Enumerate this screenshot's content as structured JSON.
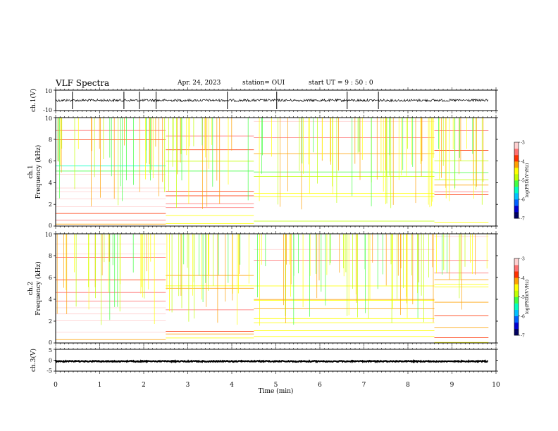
{
  "header": {
    "title": "VLF Spectra",
    "date": "Apr. 24, 2023",
    "station": "station= OUI",
    "start_ut": "start  UT  =   9  : 50 : 0"
  },
  "chart_data": [
    {
      "type": "line",
      "id": "ch1-waveform",
      "ylabel": "ch.1(V)",
      "ylim": [
        -10,
        10
      ],
      "yticks": [
        "10",
        "-10"
      ],
      "xlim": [
        0,
        10
      ],
      "x_extent": [
        0,
        9.83
      ],
      "mean": 0,
      "typical_amplitude": 1.2,
      "max_spikes": [
        0.38,
        1.55,
        1.9,
        2.28,
        3.9,
        5.02,
        6.62,
        7.33
      ]
    },
    {
      "type": "heatmap",
      "id": "ch1-spectrogram",
      "ylabel_top": "ch.1",
      "ylabel": "Frequency  (kHz)",
      "ylim": [
        0,
        10
      ],
      "yticks": [
        "0",
        "2",
        "4",
        "6",
        "8",
        "10"
      ],
      "xlim": [
        0,
        10
      ],
      "x_extent": [
        0,
        9.83
      ],
      "colorbar": {
        "label": "log(PSD)(V²/Hz)",
        "range": [
          -7,
          -3
        ],
        "ticks": [
          "-3",
          "-4",
          "-5",
          "-6",
          "-7"
        ]
      },
      "segments": [
        {
          "t_start": 0,
          "t_end": 2.5,
          "band_edges_khz": [
            0,
            0.5,
            1.0,
            1.5,
            2.0,
            2.5,
            3.0,
            3.5,
            4.0,
            4.8,
            5.2,
            5.8,
            6.3,
            7.0,
            8.0,
            9.0,
            10.0
          ],
          "log_psd": [
            -5.5,
            -5.0,
            -5.2,
            -4.2,
            -4.8,
            -4.5,
            -4.3,
            -4.6,
            -4.0,
            -6.6,
            -6.9,
            -6.2,
            -5.6,
            -5.2,
            -4.8,
            -4.6
          ]
        },
        {
          "t_start": 2.5,
          "t_end": 4.5,
          "band_edges_khz": [
            0,
            0.5,
            1.0,
            1.5,
            2.0,
            2.5,
            3.0,
            3.5,
            4.0,
            4.8,
            5.2,
            5.8,
            6.3,
            7.0,
            8.0,
            9.0,
            10.0
          ],
          "log_psd": [
            -6.0,
            -6.0,
            -5.8,
            -5.0,
            -5.0,
            -5.2,
            -5.4,
            -5.6,
            -6.0,
            -6.6,
            -6.9,
            -6.2,
            -5.6,
            -5.2,
            -4.8,
            -4.6
          ]
        },
        {
          "t_start": 4.5,
          "t_end": 8.6,
          "band_edges_khz": [
            0,
            0.5,
            1.0,
            1.5,
            2.0,
            2.5,
            3.0,
            3.5,
            4.0,
            4.8,
            5.2,
            5.8,
            6.3,
            7.0,
            8.0,
            9.0,
            10.0
          ],
          "log_psd": [
            -6.2,
            -6.2,
            -6.0,
            -6.1,
            -6.0,
            -6.0,
            -5.9,
            -6.0,
            -6.3,
            -6.6,
            -7.0,
            -6.2,
            -5.6,
            -5.2,
            -4.8,
            -4.6
          ]
        },
        {
          "t_start": 8.6,
          "t_end": 9.83,
          "band_edges_khz": [
            0,
            0.5,
            1.0,
            1.5,
            2.0,
            2.5,
            3.0,
            3.5,
            4.0,
            4.8,
            5.2,
            5.8,
            6.3,
            7.0,
            8.0,
            9.0,
            10.0
          ],
          "log_psd": [
            -6.0,
            -6.0,
            -5.6,
            -5.8,
            -5.6,
            -5.3,
            -5.0,
            -5.6,
            -6.2,
            -6.5,
            -6.9,
            -6.2,
            -5.6,
            -5.2,
            -4.8,
            -4.6
          ]
        }
      ]
    },
    {
      "type": "heatmap",
      "id": "ch2-spectrogram",
      "ylabel_top": "ch.2",
      "ylabel": "Frequency  (kHz)",
      "ylim": [
        0,
        10
      ],
      "yticks": [
        "0",
        "2",
        "4",
        "6",
        "8",
        "10"
      ],
      "xlim": [
        0,
        10
      ],
      "x_extent": [
        0,
        9.83
      ],
      "colorbar": {
        "label": "log(PSD)(V²/Hz)",
        "range": [
          -7,
          -3
        ],
        "ticks": [
          "-3",
          "-4",
          "-5",
          "-6",
          "-7"
        ]
      },
      "segments": [
        {
          "t_start": 0,
          "t_end": 2.5,
          "band_edges_khz": [
            0,
            0.5,
            1.0,
            1.5,
            2.0,
            2.5,
            3.0,
            3.5,
            4.0,
            4.8,
            5.2,
            5.8,
            6.3,
            7.0,
            8.0,
            9.0,
            10.0
          ],
          "log_psd": [
            -5.6,
            -5.2,
            -4.5,
            -4.8,
            -4.7,
            -4.3,
            -4.6,
            -4.8,
            -5.0,
            -5.3,
            -5.6,
            -5.4,
            -5.0,
            -4.8,
            -4.6,
            -4.3
          ]
        },
        {
          "t_start": 2.5,
          "t_end": 4.5,
          "band_edges_khz": [
            0,
            0.5,
            1.0,
            1.5,
            2.0,
            2.5,
            3.0,
            3.5,
            4.0,
            4.8,
            5.2,
            5.8,
            6.3,
            7.0,
            8.0,
            9.0,
            10.0
          ],
          "log_psd": [
            -6.0,
            -5.6,
            -5.2,
            -5.0,
            -5.0,
            -5.2,
            -5.0,
            -5.4,
            -5.4,
            -5.6,
            -5.8,
            -5.5,
            -5.0,
            -4.8,
            -4.6,
            -4.3
          ]
        },
        {
          "t_start": 4.5,
          "t_end": 8.6,
          "band_edges_khz": [
            0,
            0.5,
            1.0,
            1.5,
            2.0,
            2.5,
            3.0,
            3.5,
            4.0,
            4.8,
            5.2,
            5.8,
            6.3,
            7.0,
            8.0,
            9.0,
            10.0
          ],
          "log_psd": [
            -6.3,
            -6.0,
            -5.8,
            -5.8,
            -5.9,
            -5.8,
            -5.6,
            -5.8,
            -5.6,
            -5.9,
            -6.0,
            -5.6,
            -5.2,
            -4.9,
            -4.6,
            -4.3
          ]
        },
        {
          "t_start": 8.6,
          "t_end": 9.83,
          "band_edges_khz": [
            0,
            0.5,
            1.0,
            1.5,
            2.0,
            2.5,
            3.0,
            3.5,
            4.0,
            4.8,
            5.2,
            5.8,
            6.3,
            7.0,
            8.0,
            9.0,
            10.0
          ],
          "log_psd": [
            -6.0,
            -5.4,
            -5.5,
            -5.6,
            -5.4,
            -5.4,
            -5.2,
            -5.6,
            -5.6,
            -5.8,
            -6.0,
            -5.5,
            -5.0,
            -4.8,
            -4.5,
            -4.2
          ]
        }
      ]
    },
    {
      "type": "line",
      "id": "ch3-waveform",
      "ylabel": "ch.3(V)",
      "ylim": [
        -5,
        5
      ],
      "yticks": [
        "5",
        "0",
        "-5"
      ],
      "xlim": [
        0,
        10
      ],
      "x_extent": [
        0,
        9.83
      ],
      "mean": -0.5,
      "typical_amplitude": 0.25,
      "max_spikes": []
    }
  ],
  "x_axis": {
    "label": "Time  (min)",
    "range": [
      0,
      10
    ],
    "ticks": [
      "0",
      "1",
      "2",
      "3",
      "4",
      "5",
      "6",
      "7",
      "8",
      "9",
      "10"
    ]
  },
  "colormap": [
    "#000060",
    "#0000d0",
    "#0060ff",
    "#00c0ff",
    "#00ffc0",
    "#40ff40",
    "#c0ff00",
    "#ffff00",
    "#ffa000",
    "#ff3000",
    "#ff7070",
    "#ffd0d0"
  ]
}
